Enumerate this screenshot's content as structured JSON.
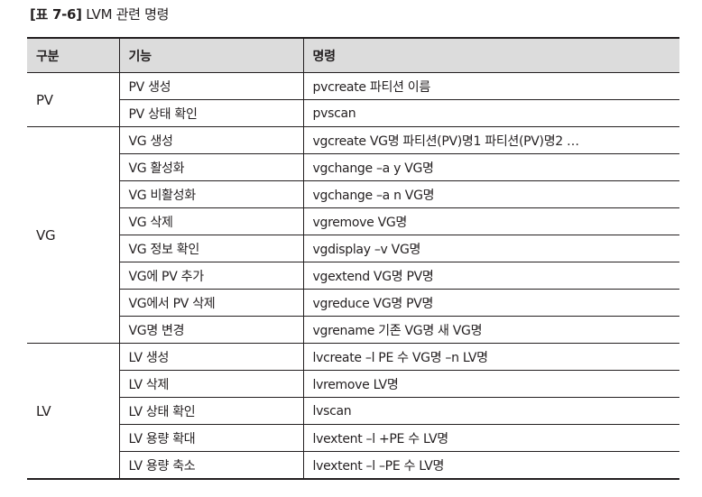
{
  "caption": {
    "label": "[표 7-6]",
    "text": " LVM 관련 명령"
  },
  "table": {
    "headers": [
      "구분",
      "기능",
      "명령"
    ],
    "groups": [
      {
        "name": "PV",
        "rows": [
          {
            "function": "PV 생성",
            "command": "pvcreate 파티션 이름"
          },
          {
            "function": "PV 상태 확인",
            "command": "pvscan"
          }
        ]
      },
      {
        "name": "VG",
        "rows": [
          {
            "function": "VG 생성",
            "command": "vgcreate VG명 파티션(PV)명1 파티션(PV)명2 …"
          },
          {
            "function": "VG 활성화",
            "command": "vgchange –a y VG명"
          },
          {
            "function": "VG 비활성화",
            "command": "vgchange –a n VG명"
          },
          {
            "function": "VG 삭제",
            "command": "vgremove VG명"
          },
          {
            "function": "VG 정보 확인",
            "command": "vgdisplay –v VG명"
          },
          {
            "function": "VG에 PV 추가",
            "command": "vgextend VG명 PV명"
          },
          {
            "function": "VG에서 PV 삭제",
            "command": "vgreduce VG명 PV명"
          },
          {
            "function": "VG명 변경",
            "command": "vgrename 기존 VG명 새 VG명"
          }
        ]
      },
      {
        "name": "LV",
        "rows": [
          {
            "function": "LV 생성",
            "command": "lvcreate –l PE 수 VG명 –n LV명"
          },
          {
            "function": "LV 삭제",
            "command": "lvremove LV명"
          },
          {
            "function": "LV 상태 확인",
            "command": "lvscan"
          },
          {
            "function": "LV 용량 확대",
            "command": "lvextent –l +PE 수 LV명"
          },
          {
            "function": "LV 용량 축소",
            "command": "lvextent –l –PE 수 LV명"
          }
        ]
      }
    ]
  }
}
